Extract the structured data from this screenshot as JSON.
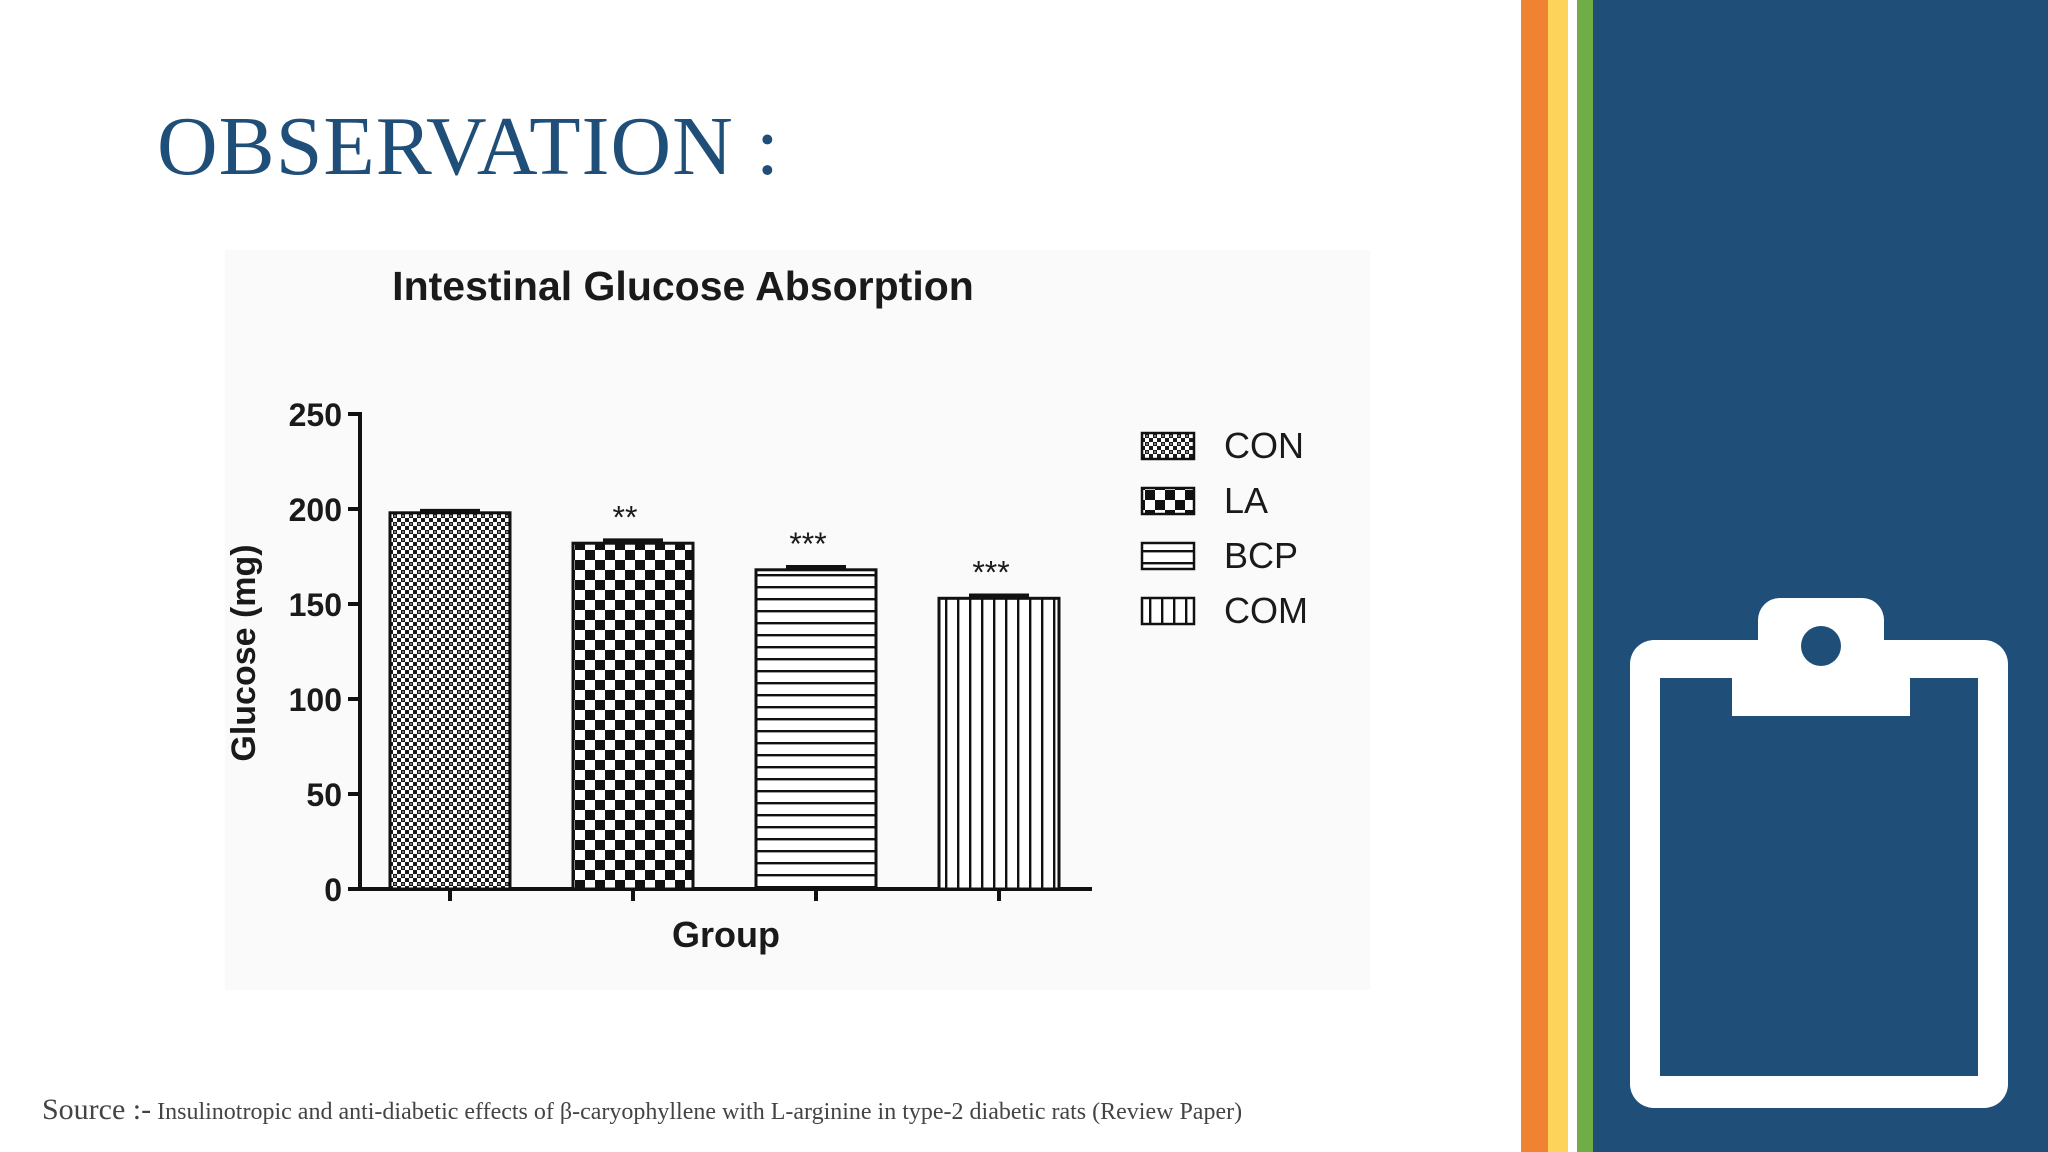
{
  "slide": {
    "title": "OBSERVATION :",
    "source_label": "Source :-",
    "source_text": " Insulinotropic and anti-diabetic effects of β-caryophyllene with L-arginine in type-2 diabetic rats (Review Paper)"
  },
  "colors": {
    "title": "#1f4e79",
    "panel": "#1f4e79",
    "stripe_orange": "#ef8332",
    "stripe_yellow": "#fdd35a",
    "stripe_green": "#70ad47"
  },
  "icons": [
    "clipboard-icon"
  ],
  "chart_data": {
    "type": "bar",
    "title": "Intestinal Glucose Absorption",
    "xlabel": "Group",
    "ylabel": "Glucose (mg)",
    "ylim": [
      0,
      250
    ],
    "yticks": [
      "0",
      "50",
      "100",
      "150",
      "200",
      "250"
    ],
    "categories": [
      "CON",
      "LA",
      "BCP",
      "COM"
    ],
    "values": [
      198,
      182,
      168,
      153
    ],
    "errors": [
      1,
      1.5,
      1.5,
      1.5
    ],
    "annotations": [
      "",
      "**",
      "***",
      "***"
    ],
    "patterns": [
      "fine-crosshatch",
      "checkerboard",
      "horizontal-lines",
      "vertical-lines"
    ],
    "legend": {
      "position": "right",
      "entries": [
        "CON",
        "LA",
        "BCP",
        "COM"
      ]
    }
  }
}
